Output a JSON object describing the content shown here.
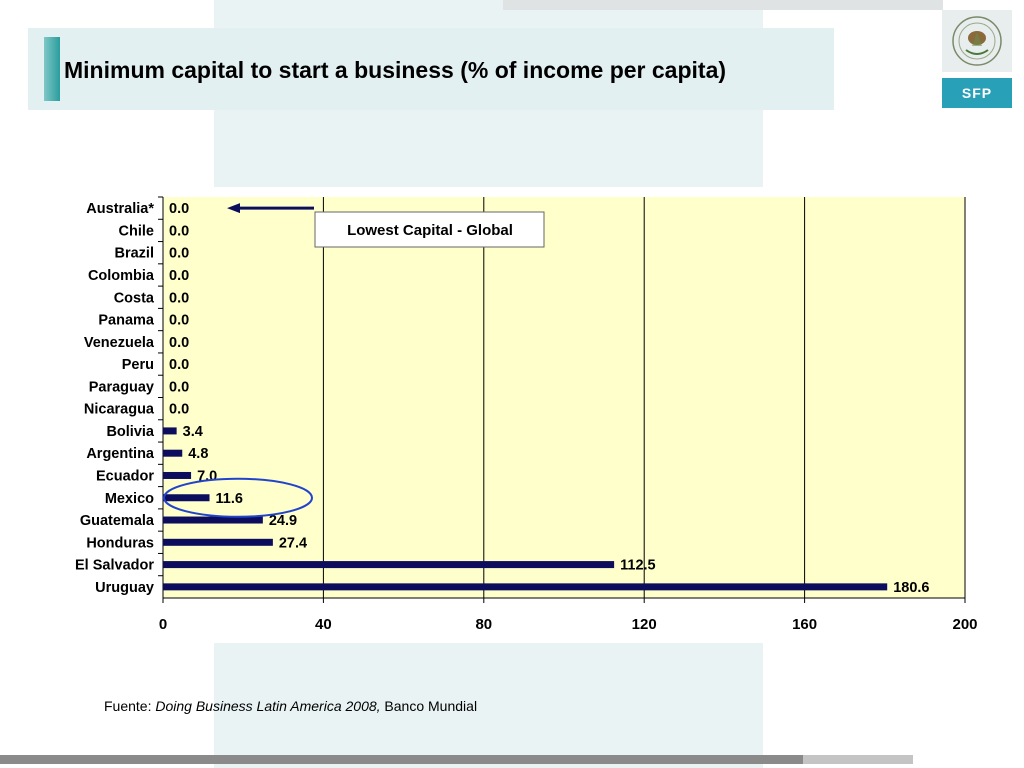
{
  "title": "Minimum capital to start a business (% of income per capita)",
  "logo": {
    "text": "SFP",
    "emblem_icon": "mexican-coat-of-arms-icon"
  },
  "colors": {
    "bar": "#0d0d5e",
    "plot_bg": "#ffffcc",
    "highlight": "#2244cc",
    "accent": "#2a9d9c"
  },
  "chart_data": {
    "type": "bar",
    "orientation": "horizontal",
    "categories": [
      "Australia*",
      "Chile",
      "Brazil",
      "Colombia",
      "Costa",
      "Panama",
      "Venezuela",
      "Peru",
      "Paraguay",
      "Nicaragua",
      "Bolivia",
      "Argentina",
      "Ecuador",
      "Mexico",
      "Guatemala",
      "Honduras",
      "El Salvador",
      "Uruguay"
    ],
    "values": [
      0.0,
      0.0,
      0.0,
      0.0,
      0.0,
      0.0,
      0.0,
      0.0,
      0.0,
      0.0,
      3.4,
      4.8,
      7.0,
      11.6,
      24.9,
      27.4,
      112.5,
      180.6
    ],
    "value_labels": [
      "0.0",
      "0.0",
      "0.0",
      "0.0",
      "0.0",
      "0.0",
      "0.0",
      "0.0",
      "0.0",
      "0.0",
      "3.4",
      "4.8",
      "7.0",
      "11.6",
      "24.9",
      "27.4",
      "112.5",
      "180.6"
    ],
    "xlim": [
      0,
      200
    ],
    "xticks": [
      "0",
      "40",
      "80",
      "120",
      "160",
      "200"
    ],
    "grid": "vertical",
    "annotation": "Lowest Capital - Global",
    "annotation_target": "Australia*",
    "highlighted": "Mexico"
  },
  "source": {
    "prefix": "Fuente: ",
    "publication": "Doing Business Latin America 2008,",
    "suffix": " Banco Mundial"
  }
}
